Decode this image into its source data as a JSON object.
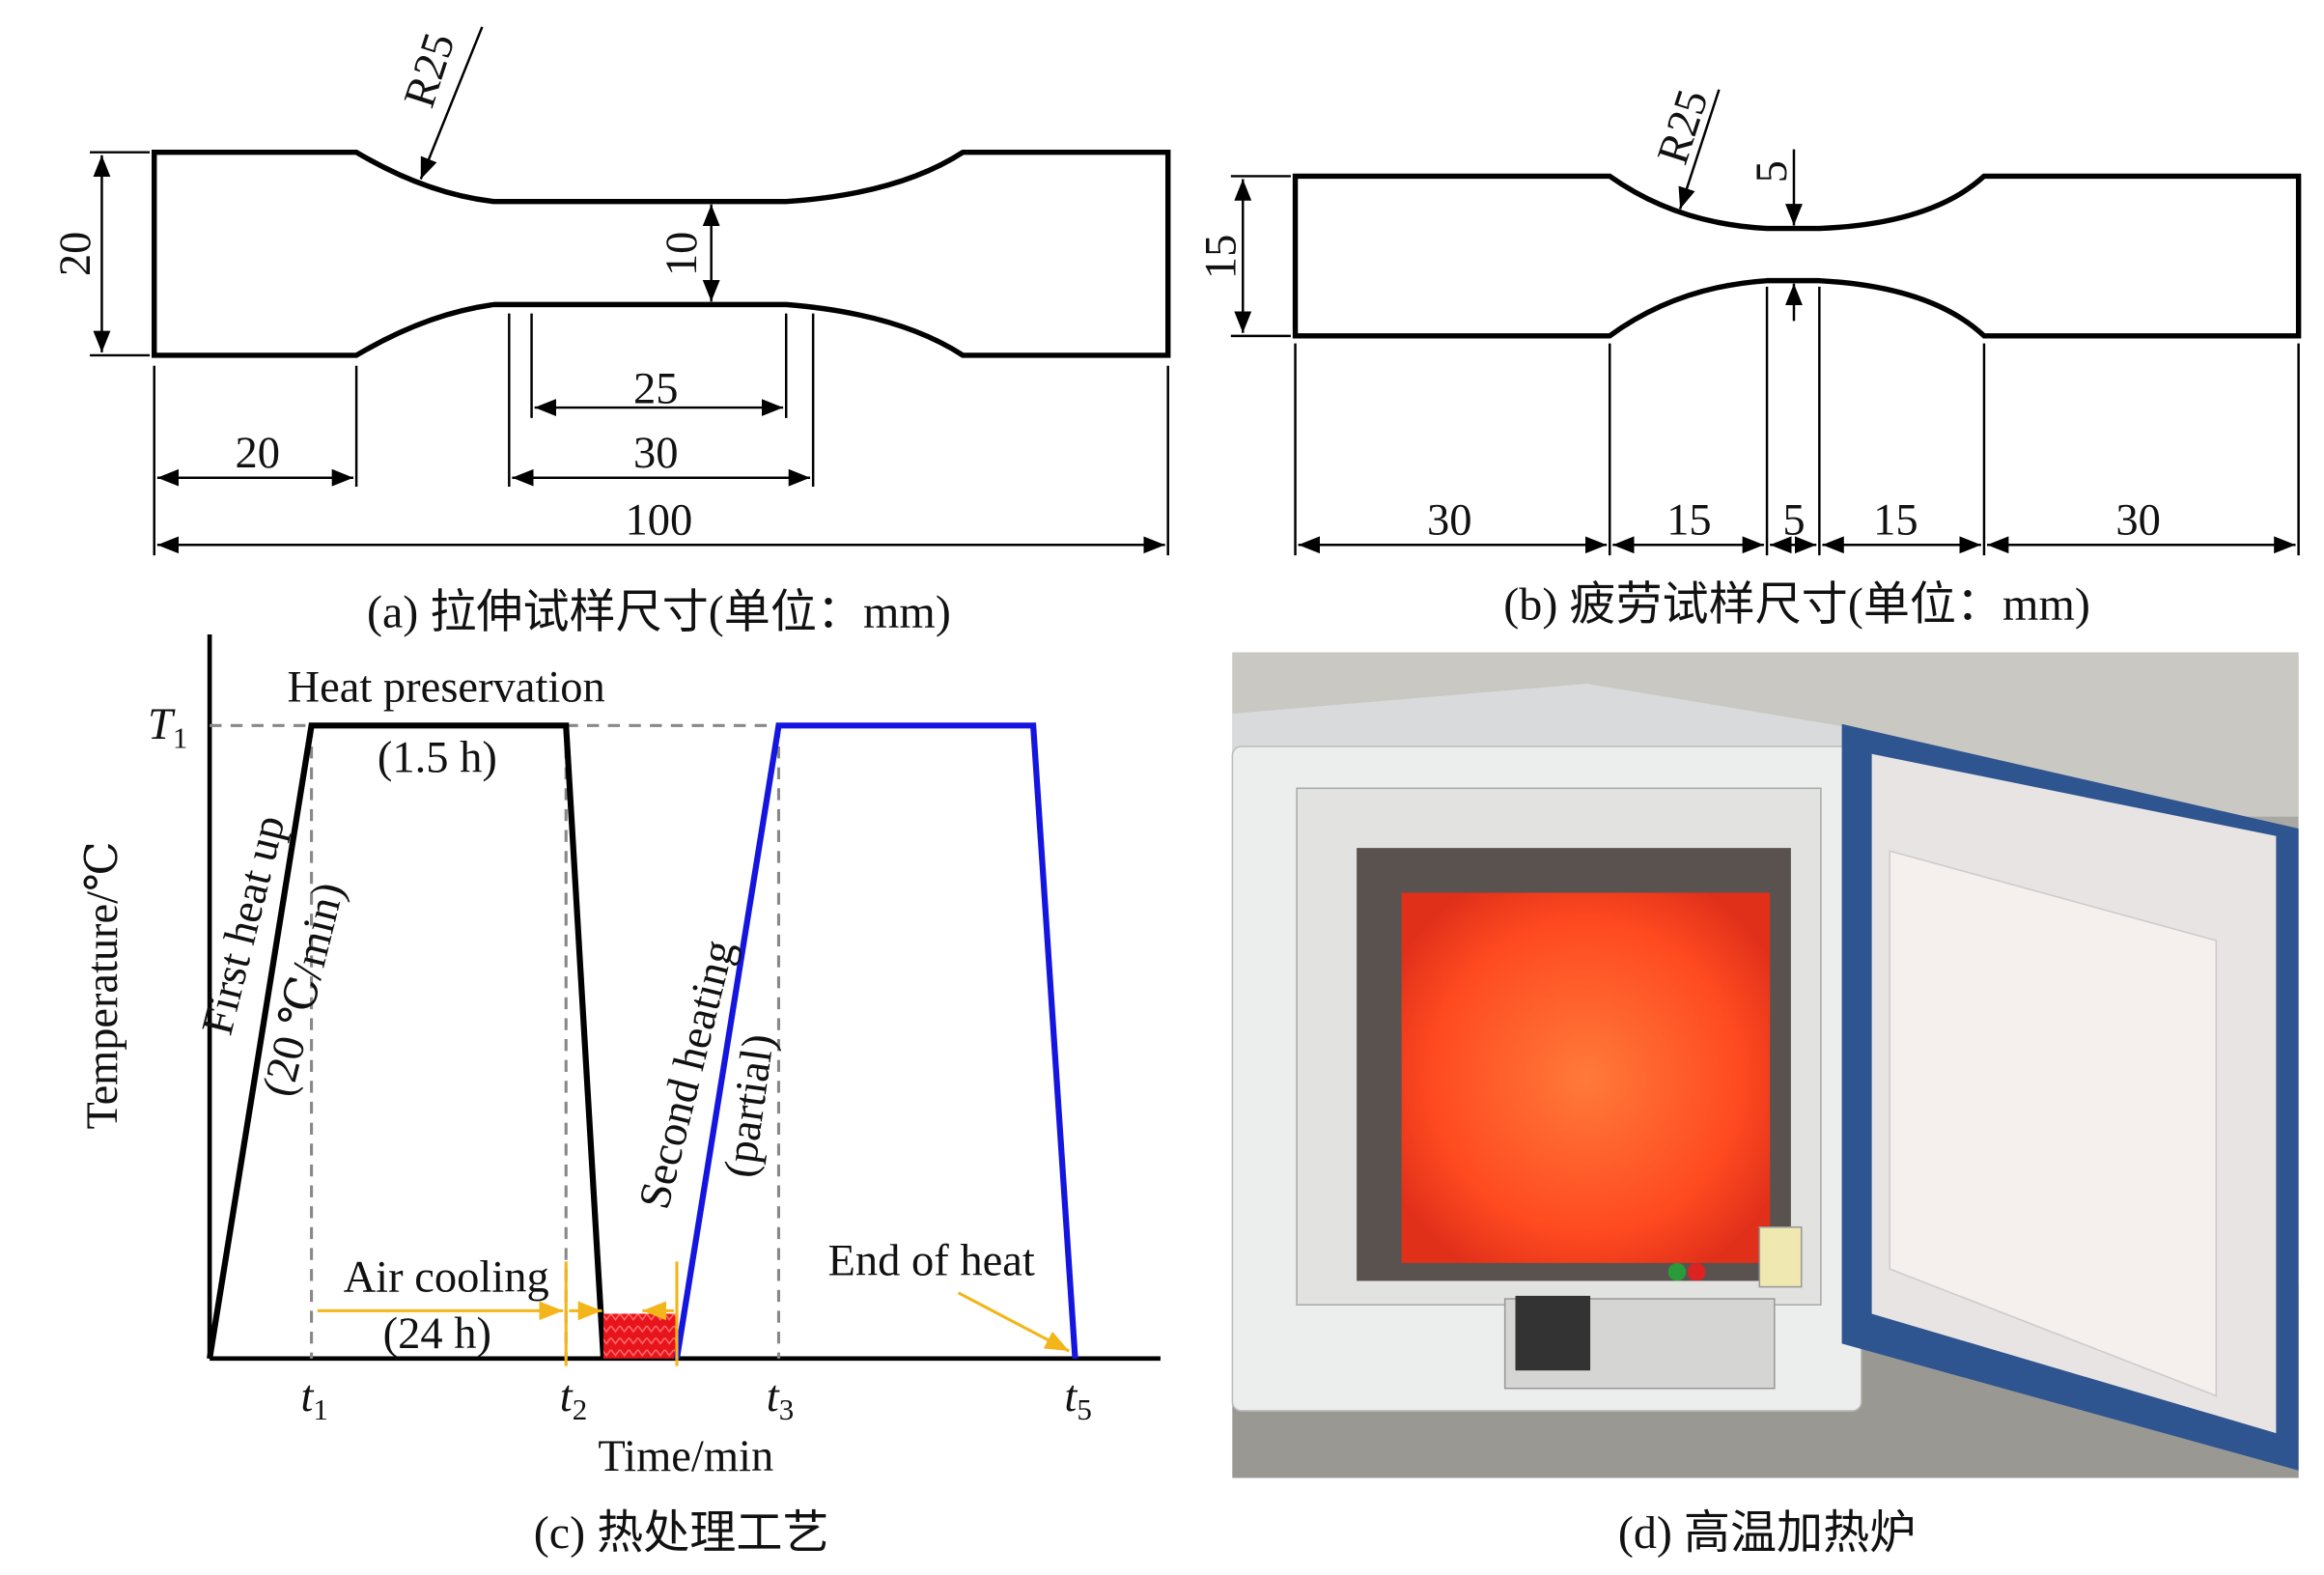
{
  "panel_a": {
    "caption": "(a) 拉伸试样尺寸(单位：mm)",
    "dimensions": {
      "radius": "R25",
      "height": "20",
      "neck_width": "10",
      "parallel_length": "25",
      "neck_length": "30",
      "grip_length": "20",
      "total_length": "100"
    }
  },
  "panel_b": {
    "caption": "(b) 疲劳试样尺寸(单位：mm)",
    "dimensions": {
      "radius": "R25",
      "height": "15",
      "neck_width": "5",
      "segments": [
        "30",
        "15",
        "5",
        "15",
        "30"
      ]
    }
  },
  "panel_c": {
    "caption": "(c) 热处理工艺",
    "x_axis_label": "Time/min",
    "y_axis_label": "Temperature/℃",
    "level": {
      "symbol": "T",
      "subscript": "1"
    },
    "time_marks": [
      {
        "symbol": "t",
        "subscript": "1"
      },
      {
        "symbol": "t",
        "subscript": "2"
      },
      {
        "symbol": "t",
        "subscript": "3"
      },
      {
        "symbol": "t",
        "subscript": "5"
      }
    ],
    "annotations": {
      "heat_preservation": "Heat preservation",
      "heat_preservation_time": "(1.5 h)",
      "first_heat_up": "First heat up",
      "heating_rate": "(20 ℃/min)",
      "second_heating": "Second heating",
      "second_heating_note": "(partial)",
      "air_cooling": "Air cooling",
      "air_cooling_time": "(24 h)",
      "end_of_heat": "End of heat"
    }
  },
  "panel_d": {
    "caption": "(d) 高温加热炉"
  }
}
